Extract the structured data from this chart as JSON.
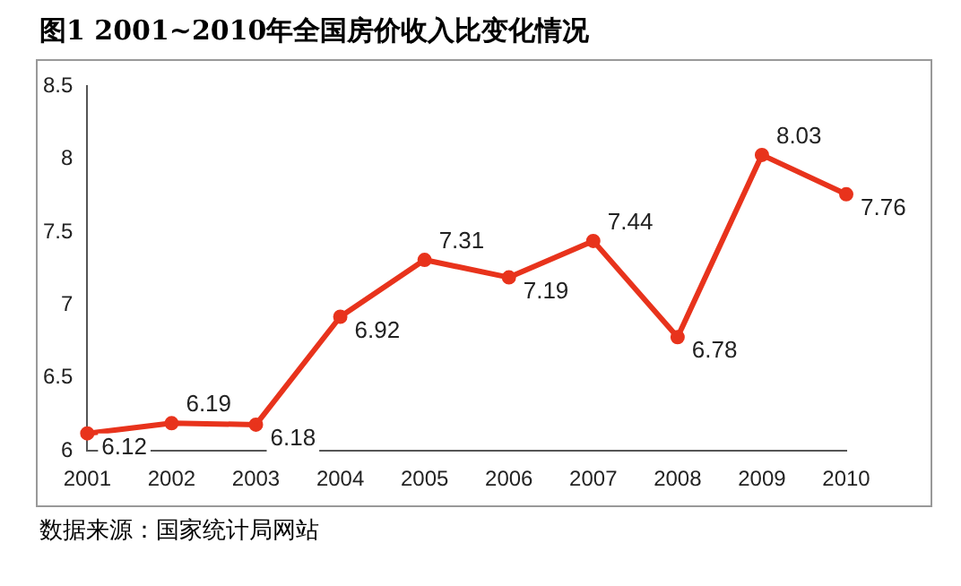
{
  "chart_data": {
    "type": "line",
    "title": "图1  2001~2010年全国房价收入比变化情况",
    "categories": [
      "2001",
      "2002",
      "2003",
      "2004",
      "2005",
      "2006",
      "2007",
      "2008",
      "2009",
      "2010"
    ],
    "series": [
      {
        "color": "#e8331c",
        "values": [
          6.12,
          6.19,
          6.18,
          6.92,
          7.31,
          7.19,
          7.44,
          6.78,
          8.03,
          7.76
        ]
      }
    ],
    "ylim": [
      6,
      8.5
    ],
    "yticks": [
      6,
      6.5,
      7,
      7.5,
      8,
      8.5
    ],
    "grid": false,
    "legend": false,
    "marker": "circle",
    "line_style": "solid",
    "data_labels": true,
    "annotations": [
      "数据来源：国家统计局网站"
    ]
  }
}
